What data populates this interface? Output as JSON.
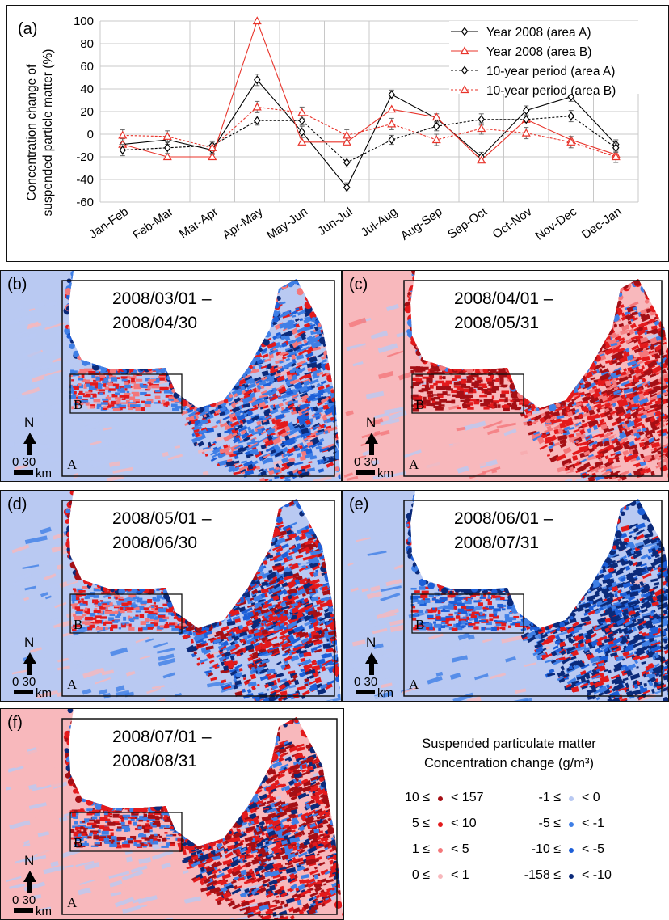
{
  "chart_data": {
    "type": "line",
    "panel_label": "(a)",
    "ylabel_line1": "Concentration change of",
    "ylabel_line2": "suspended particle matter (%)",
    "ylim": [
      -60,
      100
    ],
    "yticks": [
      -60,
      -40,
      -20,
      0,
      20,
      40,
      60,
      80,
      100
    ],
    "grid": true,
    "legend_position": "top-right",
    "categories": [
      "Jan-Feb",
      "Feb-Mar",
      "Mar-Apr",
      "Apr-May",
      "May-Jun",
      "Jun-Jul",
      "Jul-Aug",
      "Aug-Sep",
      "Sep-Oct",
      "Oct-Nov",
      "Nov-Dec",
      "Dec-Jan"
    ],
    "series": [
      {
        "name": "Year 2008 (area A)",
        "color": "#000000",
        "dashed": false,
        "marker": "diamond",
        "values": [
          -9,
          -5,
          -14,
          48,
          2,
          -47,
          35,
          14,
          -20,
          21,
          33,
          -9
        ],
        "errors": [
          5,
          4,
          4,
          5,
          5,
          4,
          4,
          4,
          4,
          4,
          4,
          4
        ]
      },
      {
        "name": "Year 2008 (area B)",
        "color": "#e8332a",
        "dashed": false,
        "marker": "triangle",
        "values": [
          -9,
          -20,
          -20,
          100,
          -7,
          -7,
          22,
          15,
          -23,
          13,
          -5,
          -18
        ],
        "errors": [
          0,
          0,
          0,
          0,
          0,
          0,
          0,
          0,
          0,
          0,
          0,
          0
        ]
      },
      {
        "name": "10-year period (area A)",
        "color": "#000000",
        "dashed": true,
        "marker": "diamond",
        "values": [
          -14,
          -12,
          -10,
          12,
          12,
          -25,
          -5,
          7,
          13,
          13,
          16,
          -12
        ],
        "errors": [
          5,
          5,
          4,
          4,
          4,
          4,
          4,
          4,
          5,
          4,
          5,
          4
        ]
      },
      {
        "name": "10-year period (area B)",
        "color": "#e8332a",
        "dashed": true,
        "marker": "triangle",
        "values": [
          -1,
          -2,
          -12,
          24,
          19,
          -1,
          9,
          -5,
          5,
          1,
          -7,
          -20
        ],
        "errors": [
          5,
          5,
          5,
          5,
          5,
          5,
          5,
          5,
          5,
          5,
          5,
          5
        ]
      }
    ]
  },
  "maps": [
    {
      "id": "b",
      "label": "(b)",
      "date_start": "2008/03/01 –",
      "date_end": "2008/04/30",
      "tone": "spring"
    },
    {
      "id": "c",
      "label": "(c)",
      "date_start": "2008/04/01 –",
      "date_end": "2008/05/31",
      "tone": "red"
    },
    {
      "id": "d",
      "label": "(d)",
      "date_start": "2008/05/01 –",
      "date_end": "2008/06/30",
      "tone": "mixed"
    },
    {
      "id": "e",
      "label": "(e)",
      "date_start": "2008/06/01 –",
      "date_end": "2008/07/31",
      "tone": "blue"
    },
    {
      "id": "f",
      "label": "(f)",
      "date_start": "2008/07/01 –",
      "date_end": "2008/08/31",
      "tone": "red2"
    }
  ],
  "map_labels": {
    "north": "N",
    "scale_value": "0 30",
    "scale_unit": "km",
    "area_a": "A",
    "area_b": "B"
  },
  "legend": {
    "title_line1": "Suspended particulate matter",
    "title_line2": "Concentration change (g/m³)",
    "left": [
      {
        "low": "10 ≤",
        "high": "< 157",
        "color": "#a50f15"
      },
      {
        "low": "5 ≤",
        "high": "< 10",
        "color": "#e31a1c"
      },
      {
        "low": "1 ≤",
        "high": "< 5",
        "color": "#f4777a"
      },
      {
        "low": "0 ≤",
        "high": "< 1",
        "color": "#f8b8bc"
      }
    ],
    "right": [
      {
        "low": "-1 ≤",
        "high": "< 0",
        "color": "#b9c9f2"
      },
      {
        "low": "-5 ≤",
        "high": "< -1",
        "color": "#3f7fe6"
      },
      {
        "low": "-10 ≤",
        "high": "< -5",
        "color": "#1d5fd8"
      },
      {
        "low": "-158 ≤",
        "high": "< -10",
        "color": "#0b2a7a"
      }
    ]
  }
}
